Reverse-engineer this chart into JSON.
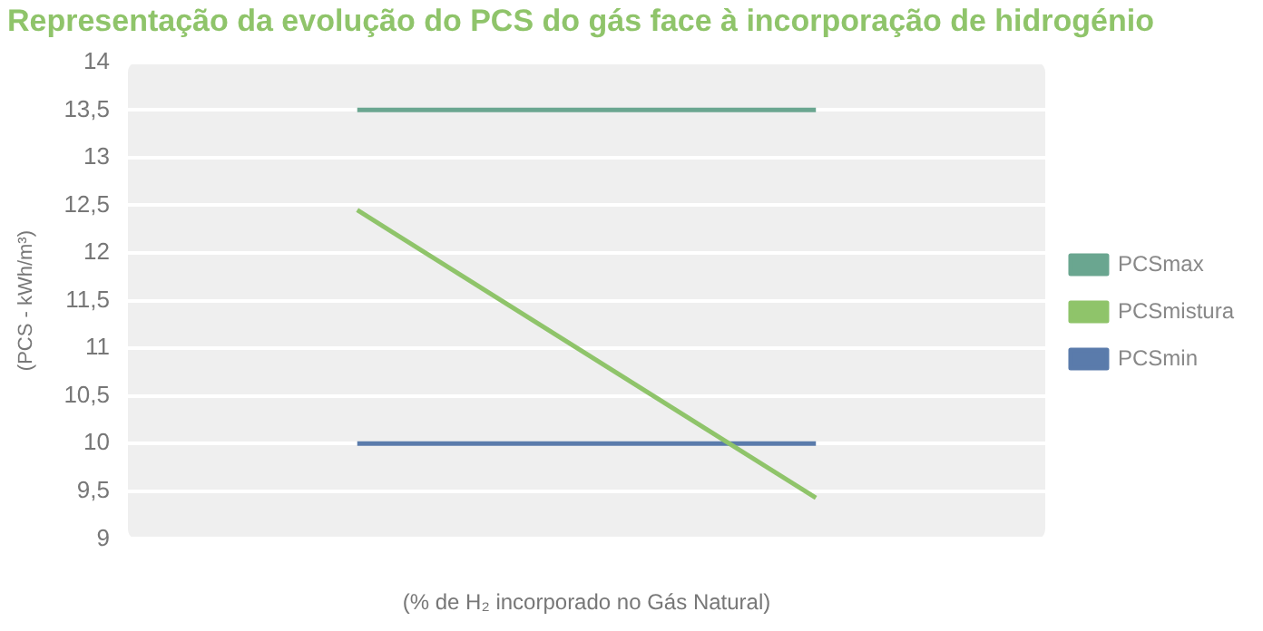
{
  "chart_data": {
    "type": "line",
    "title": "Representação da evolução do PCS do gás face à incorporação de hidrogénio",
    "xlabel": "(% de H₂ incorporado no Gás Natural)",
    "ylabel": "(PCS - kWh/m³)",
    "categories": [
      null,
      null
    ],
    "series": [
      {
        "name": "PCSmax",
        "color": "#6aa690",
        "values": [
          13.5,
          13.5
        ]
      },
      {
        "name": "PCSmistura",
        "color": "#8fc46a",
        "values": [
          12.45,
          9.43
        ]
      },
      {
        "name": "PCSmin",
        "color": "#5a7bab",
        "values": [
          10,
          10
        ]
      }
    ],
    "ylim": [
      9,
      14
    ],
    "yticks": [
      {
        "value": 9,
        "label": "9"
      },
      {
        "value": 9.5,
        "label": "9,5"
      },
      {
        "value": 10,
        "label": "10"
      },
      {
        "value": 10.5,
        "label": "10,5"
      },
      {
        "value": 11,
        "label": "11"
      },
      {
        "value": 11.5,
        "label": "11,5"
      },
      {
        "value": 12,
        "label": "12"
      },
      {
        "value": 12.5,
        "label": "12,5"
      },
      {
        "value": 13,
        "label": "13"
      },
      {
        "value": 13.5,
        "label": "13,5"
      },
      {
        "value": 14,
        "label": "14"
      }
    ],
    "grid": "y",
    "legend": "right",
    "marker": "none",
    "line_style": "solid"
  }
}
